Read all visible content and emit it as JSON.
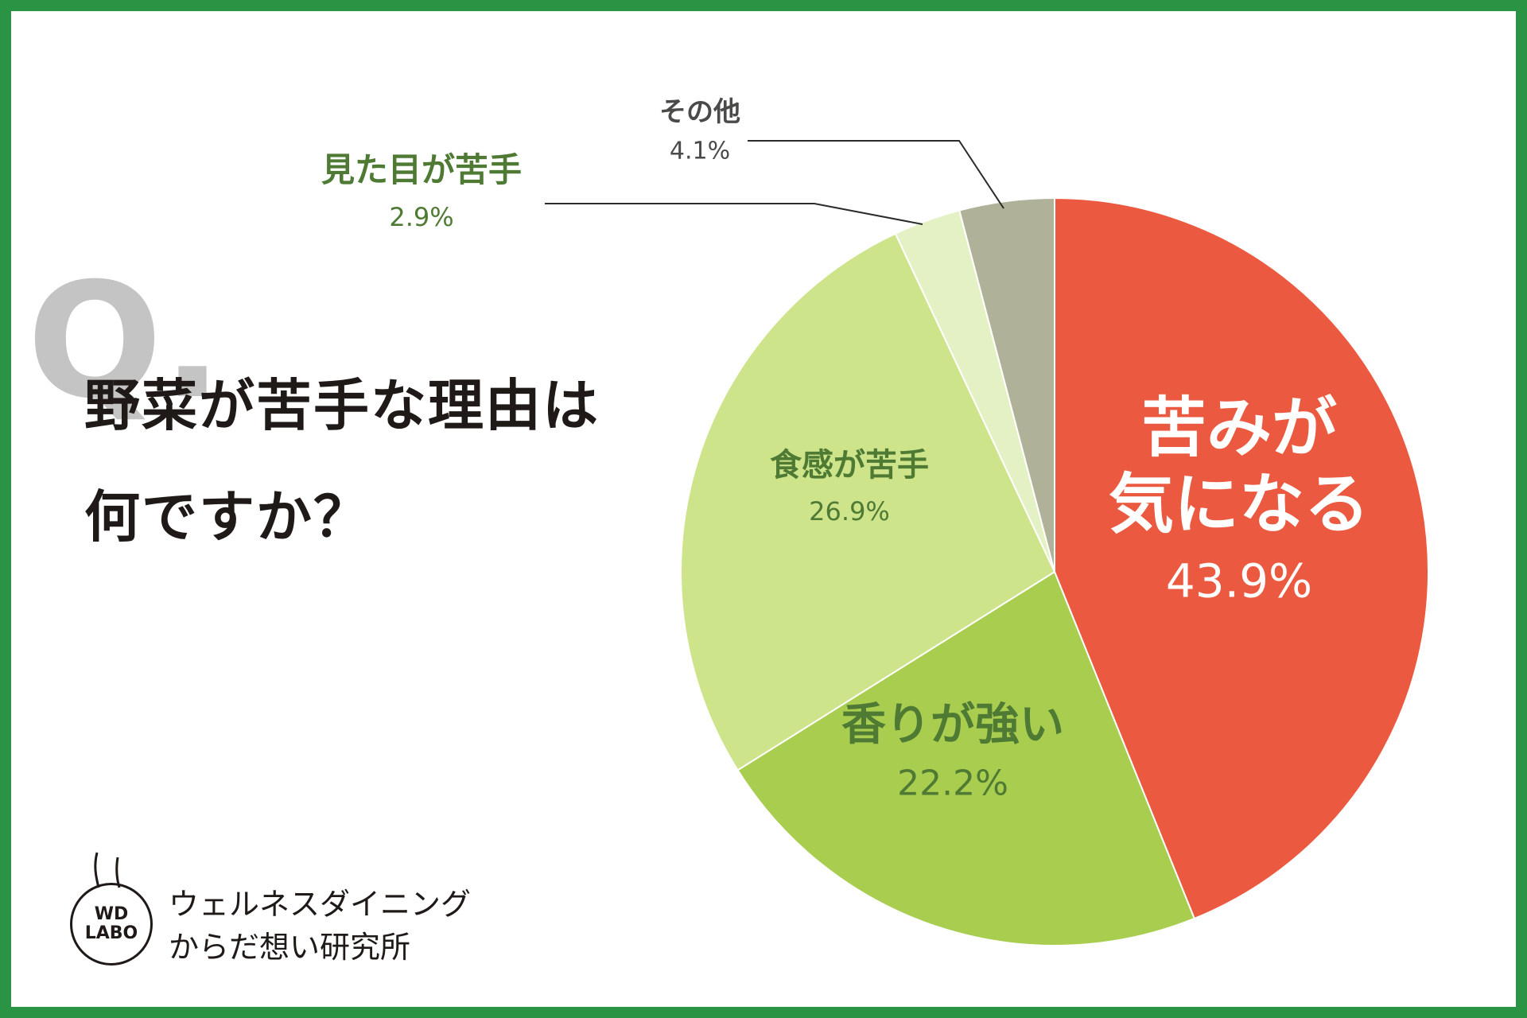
{
  "question": {
    "prefix": "Q.",
    "line1": "野菜が苦手な理由は",
    "line2": "何ですか？"
  },
  "logo": {
    "badge_line1": "WD",
    "badge_line2": "LABO",
    "name_line1": "ウェルネスダイニング",
    "name_line2": "からだ想い研究所"
  },
  "colors": {
    "frame": "#2a9444",
    "label_green": "#4f7a34",
    "label_gray": "#4a4a48"
  },
  "chart_data": {
    "type": "pie",
    "start": "12 o'clock, clockwise",
    "slices": [
      {
        "label": "苦みが気になる",
        "label_lines": [
          "苦みが",
          "気になる"
        ],
        "value": 43.9,
        "display": "43.9%",
        "color": "#eb5a40"
      },
      {
        "label": "香りが強い",
        "label_lines": [
          "香りが強い"
        ],
        "value": 22.2,
        "display": "22.2%",
        "color": "#a8cd4f"
      },
      {
        "label": "食感が苦手",
        "label_lines": [
          "食感が苦手"
        ],
        "value": 26.9,
        "display": "26.9%",
        "color": "#cde48b"
      },
      {
        "label": "見た目が苦手",
        "label_lines": [
          "見た目が苦手"
        ],
        "value": 2.9,
        "display": "2.9%",
        "color": "#e4f1c4"
      },
      {
        "label": "その他",
        "label_lines": [
          "その他"
        ],
        "value": 4.1,
        "display": "4.1%",
        "color": "#b0b199"
      }
    ]
  }
}
